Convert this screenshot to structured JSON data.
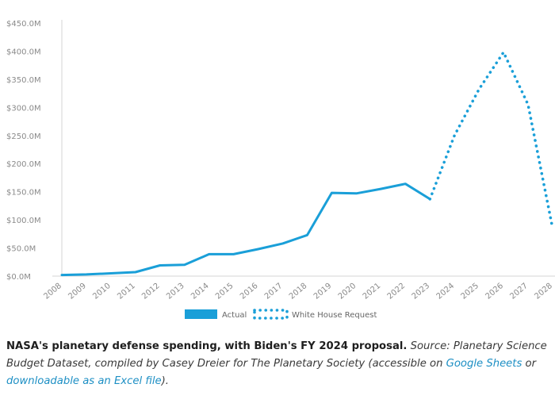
{
  "chart_data": {
    "type": "line",
    "x": [
      "2008",
      "2009",
      "2010",
      "2011",
      "2012",
      "2013",
      "2014",
      "2015",
      "2016",
      "2017",
      "2018",
      "2019",
      "2020",
      "2021",
      "2022",
      "2023",
      "2024",
      "2025",
      "2026",
      "2027",
      "2028"
    ],
    "y_ticks": [
      "$0.0M",
      "$50.0M",
      "$100.0M",
      "$150.0M",
      "$200.0M",
      "$250.0M",
      "$300.0M",
      "$350.0M",
      "$400.0M",
      "$450.0M"
    ],
    "ylim": [
      0,
      450
    ],
    "series": [
      {
        "name": "Actual",
        "style": "solid",
        "color": "#1a9fd8",
        "x": [
          "2008",
          "2009",
          "2010",
          "2011",
          "2012",
          "2013",
          "2014",
          "2015",
          "2016",
          "2017",
          "2018",
          "2019",
          "2020",
          "2021",
          "2022",
          "2023"
        ],
        "values": [
          2,
          3,
          5,
          7,
          19,
          20,
          39,
          39,
          48,
          58,
          73,
          148,
          147,
          155,
          164,
          137
        ]
      },
      {
        "name": "White House Request",
        "style": "dotted",
        "color": "#1a9fd8",
        "x": [
          "2023",
          "2024",
          "2025",
          "2026",
          "2027",
          "2028"
        ],
        "values": [
          137,
          250,
          332,
          398,
          305,
          85
        ]
      }
    ],
    "grid": false,
    "legend_position": "bottom-center"
  },
  "caption": {
    "title": "NASA's planetary defense spending, with Biden's FY 2024 proposal.",
    "source_text": "Source: Planetary Science Budget Dataset, compiled by Casey Dreier for The Planetary Society (accessible on",
    "link1": "Google Sheets",
    "middle": "or",
    "link2": "downloadable as an Excel file",
    "end": ")."
  }
}
